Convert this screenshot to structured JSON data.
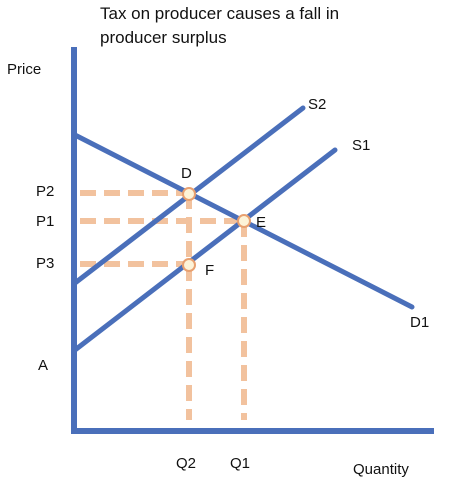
{
  "title": {
    "line1": "Tax on producer causes a fall in",
    "line2": "producer surplus"
  },
  "axes": {
    "y_label": "Price",
    "x_label": "Quantity"
  },
  "curves": {
    "supply_after_tax": "S2",
    "supply_original": "S1",
    "demand": "D1"
  },
  "points": {
    "d": "D",
    "e": "E",
    "f": "F"
  },
  "price_levels": {
    "p2": "P2",
    "p1": "P1",
    "p3": "P3",
    "a": "A"
  },
  "quantity_levels": {
    "q2": "Q2",
    "q1": "Q1"
  },
  "colors": {
    "curve": "#4a6fba",
    "guide": "#f2c29e",
    "point_fill": "#fdf3d8",
    "point_stroke": "#e8a070"
  }
}
